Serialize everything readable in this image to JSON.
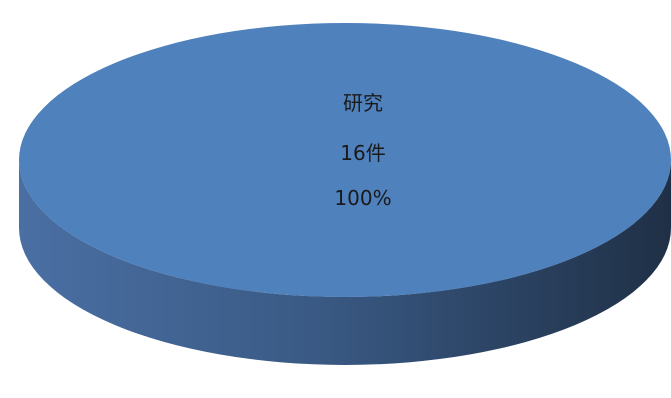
{
  "chart_data": {
    "type": "pie",
    "style": "3d",
    "slices": [
      {
        "category": "研究",
        "count_label": "16件",
        "percent_label": "100%",
        "value": 16,
        "percent": 100,
        "color": "#4F81BD"
      }
    ],
    "legend": "none"
  },
  "colors": {
    "top_face": "#4F81BD",
    "side_light": "#4A6FA3",
    "side_dark": "#1F3046"
  }
}
